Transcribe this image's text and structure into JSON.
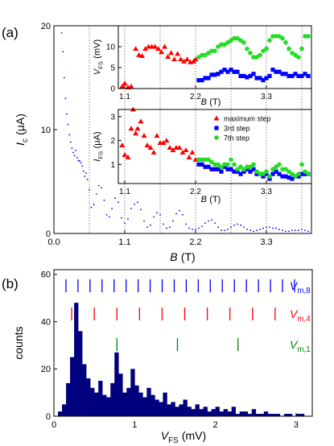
{
  "chart_data": [
    {
      "type": "scatter",
      "panel_label": "(a)",
      "x": [
        0.12,
        0.14,
        0.16,
        0.18,
        0.2,
        0.22,
        0.24,
        0.26,
        0.28,
        0.3,
        0.32,
        0.34,
        0.36,
        0.38,
        0.4,
        0.42,
        0.44,
        0.46,
        0.48,
        0.5,
        0.52,
        0.55,
        0.58,
        0.62,
        0.66,
        0.7,
        0.74,
        0.78,
        0.82,
        0.86,
        0.9,
        0.95,
        1,
        1.05,
        1.1,
        1.15,
        1.2,
        1.25,
        1.3,
        1.35,
        1.4,
        1.45,
        1.5,
        1.55,
        1.6,
        1.65,
        1.7,
        1.75,
        1.8,
        1.85,
        1.9,
        1.95,
        2,
        2.05,
        2.1,
        2.15,
        2.2,
        2.25,
        2.3,
        2.35,
        2.4,
        2.45,
        2.5,
        2.55,
        2.6,
        2.65,
        2.7,
        2.75,
        2.8,
        2.85,
        2.9,
        2.95,
        3,
        3.05,
        3.1,
        3.15,
        3.2,
        3.25,
        3.3,
        3.35,
        3.4,
        3.45,
        3.5,
        3.55,
        3.6,
        3.65,
        3.7,
        3.75,
        3.8,
        3.85,
        3.9,
        3.95
      ],
      "values": [
        19.3,
        17.5,
        15,
        13,
        11.5,
        10.5,
        9.5,
        8.8,
        8.2,
        7.8,
        7.5,
        8,
        7.3,
        7,
        7,
        6.8,
        6.5,
        6,
        5.5,
        5.8,
        5.2,
        4.2,
        2.5,
        2.8,
        3.8,
        4.6,
        4.4,
        3.2,
        1.8,
        1.6,
        2.4,
        3.4,
        3,
        1.5,
        1,
        1.4,
        2.4,
        2.8,
        3,
        2.3,
        1.2,
        0.6,
        0.8,
        1.6,
        2,
        1.8,
        0.9,
        0.5,
        0.6,
        1.2,
        1.9,
        2.2,
        1.8,
        0.9,
        0.5,
        0.4,
        0.4,
        0.5,
        0.7,
        1,
        1.2,
        1.3,
        1,
        0.6,
        0.3,
        0.3,
        0.4,
        0.6,
        0.8,
        0.9,
        0.8,
        0.6,
        0.4,
        0.3,
        0.2,
        0.3,
        0.4,
        0.5,
        0.6,
        0.6,
        0.5,
        0.5,
        0.4,
        0.3,
        0.2,
        0.2,
        0.3,
        0.3,
        0.3,
        0.4,
        0.3,
        0.2
      ],
      "color": "#0000ff",
      "marker": "dot",
      "xlim": [
        0,
        4
      ],
      "ylim": [
        0,
        20
      ],
      "xticks": [
        {
          "value": 0,
          "label": "0.0"
        },
        1.1,
        2.2,
        3.3
      ],
      "yticks": [
        0,
        10,
        20
      ],
      "xlabel": {
        "symbol": "B",
        "unit": "(T)"
      },
      "ylabel": {
        "symbol": "I",
        "sub": "c",
        "unit": "(μA)"
      },
      "vlines": [
        0.55,
        1.1,
        1.65,
        2.2,
        2.75,
        3.3,
        3.85
      ]
    },
    {
      "type": "scatter",
      "series": [
        {
          "color": "#ff0000",
          "marker": "triangle",
          "x": [
            1.06,
            1.1,
            1.15,
            1.2,
            1.27,
            1.32,
            1.37,
            1.42,
            1.47,
            1.52,
            1.57,
            1.62,
            1.67,
            1.72,
            1.77,
            1.82,
            1.87,
            1.92,
            1.97,
            2.02,
            2.07,
            2.12,
            2.17,
            2.2
          ],
          "values": [
            0.5,
            1.2,
            0.3,
            0.5,
            9.5,
            8,
            7.8,
            9.5,
            10,
            10,
            10,
            9.5,
            8.7,
            10,
            7.6,
            8.5,
            7,
            8.3,
            7,
            6.5,
            7,
            6.3,
            6.5,
            7
          ]
        },
        {
          "color": "#0000ff",
          "marker": "square",
          "x": [
            2.25,
            2.3,
            2.35,
            2.4,
            2.45,
            2.5,
            2.55,
            2.6,
            2.65,
            2.7,
            2.75,
            2.8,
            2.85,
            2.9,
            2.95,
            3,
            3.05,
            3.1,
            3.15,
            3.2,
            3.25,
            3.3,
            3.35,
            3.4,
            3.45,
            3.5,
            3.55,
            3.6,
            3.65,
            3.7,
            3.75,
            3.8,
            3.85,
            3.9,
            3.95
          ],
          "values": [
            2,
            2,
            2.5,
            2.5,
            3.3,
            3.3,
            3.5,
            4,
            4.5,
            4,
            4.5,
            4,
            4,
            3,
            3,
            2.7,
            3,
            3.5,
            2.5,
            2.5,
            2,
            2.5,
            3,
            4.5,
            4,
            4,
            3.5,
            3.5,
            3,
            3,
            3.5,
            3,
            3,
            3.5,
            3
          ]
        },
        {
          "color": "#22dd22",
          "marker": "circle",
          "x": [
            2.25,
            2.3,
            2.35,
            2.4,
            2.45,
            2.5,
            2.55,
            2.6,
            2.65,
            2.7,
            2.75,
            2.8,
            2.85,
            2.9,
            2.95,
            3,
            3.05,
            3.1,
            3.15,
            3.2,
            3.25,
            3.3,
            3.35,
            3.4,
            3.45,
            3.5,
            3.55,
            3.6,
            3.65,
            3.7,
            3.75,
            3.8,
            3.85,
            3.9,
            3.95
          ],
          "values": [
            7.5,
            8,
            8,
            8.5,
            9,
            9,
            10,
            10.5,
            10.5,
            11,
            11.5,
            12,
            12,
            11.5,
            11,
            9.5,
            8.5,
            7.5,
            7.5,
            8,
            9,
            9.5,
            11.5,
            12.5,
            12.5,
            12.5,
            12,
            11,
            9.5,
            8.5,
            8,
            7.5,
            9.5,
            12.5,
            12.5
          ]
        }
      ],
      "xlim": [
        1,
        4
      ],
      "ylim": [
        0,
        15
      ],
      "xticks": [
        1.1,
        2.2,
        3.3
      ],
      "yticks": [
        0,
        5,
        10
      ],
      "xlabel": {
        "symbol": "B",
        "unit": "(T)"
      },
      "ylabel": {
        "symbol": "V",
        "sub": "FS",
        "unit": "(mV)"
      },
      "vlines": [
        1.1,
        1.65,
        2.2,
        2.75,
        3.3,
        3.85
      ]
    },
    {
      "type": "scatter",
      "legend": "upper right",
      "series": [
        {
          "name": "maximum step",
          "color": "#ff0000",
          "marker": "triangle",
          "x": [
            1.06,
            1.1,
            1.15,
            1.2,
            1.23,
            1.27,
            1.3,
            1.35,
            1.4,
            1.45,
            1.5,
            1.55,
            1.6,
            1.65,
            1.7,
            1.75,
            1.8,
            1.85,
            1.9,
            1.95,
            2,
            2.05,
            2.1,
            2.15,
            2.2
          ],
          "values": [
            1.8,
            1.4,
            1.3,
            2.5,
            3.3,
            2.3,
            2.5,
            2.8,
            2.2,
            1.8,
            1.7,
            1.5,
            2.2,
            1.9,
            1.9,
            2,
            1.7,
            1.6,
            1.7,
            1.7,
            1.5,
            1.6,
            1.3,
            1.5,
            1.2
          ]
        },
        {
          "name": "3rd step",
          "color": "#0000ff",
          "marker": "square",
          "x": [
            2.25,
            2.3,
            2.35,
            2.4,
            2.45,
            2.5,
            2.55,
            2.6,
            2.65,
            2.7,
            2.75,
            2.8,
            2.85,
            2.9,
            2.95,
            3,
            3.05,
            3.1,
            3.15,
            3.2,
            3.25,
            3.3,
            3.35,
            3.4,
            3.45,
            3.5,
            3.55,
            3.6,
            3.65,
            3.7,
            3.75,
            3.8,
            3.85,
            3.9,
            3.95
          ],
          "values": [
            1,
            1,
            0.9,
            0.9,
            0.8,
            0.8,
            0.8,
            0.7,
            0.9,
            0.8,
            0.8,
            0.7,
            0.7,
            0.6,
            0.7,
            0.8,
            0.7,
            0.8,
            0.6,
            0.6,
            0.5,
            0.6,
            0.4,
            0.6,
            0.7,
            0.6,
            0.5,
            0.5,
            0.45,
            0.4,
            0.5,
            0.5,
            0.6,
            0.6,
            0.6
          ]
        },
        {
          "name": "7th step",
          "color": "#22dd22",
          "marker": "circle",
          "x": [
            2.25,
            2.3,
            2.35,
            2.4,
            2.45,
            2.5,
            2.55,
            2.6,
            2.65,
            2.7,
            2.75,
            2.8,
            2.85,
            2.9,
            2.95,
            3,
            3.05,
            3.1,
            3.15,
            3.2,
            3.25,
            3.3,
            3.35,
            3.4,
            3.45,
            3.5,
            3.55,
            3.6,
            3.65,
            3.7,
            3.75,
            3.8,
            3.85,
            3.9,
            3.95
          ],
          "values": [
            1.2,
            1.2,
            1.2,
            1.2,
            1.1,
            1,
            1,
            0.9,
            1,
            1,
            1.2,
            1,
            0.8,
            0.9,
            0.8,
            0.9,
            0.9,
            1,
            0.7,
            0.6,
            0.6,
            0.7,
            0.5,
            0.8,
            0.9,
            1,
            0.8,
            0.8,
            0.7,
            0.6,
            0.5,
            0.6,
            1,
            0.7,
            0.6
          ]
        }
      ],
      "xlim": [
        1,
        4
      ],
      "ylim": [
        0.2,
        3.3
      ],
      "xticks": [
        1.1,
        2.2,
        3.3
      ],
      "yticks": [
        1,
        2,
        3
      ],
      "xlabel": {
        "symbol": "B",
        "unit": "(T)"
      },
      "ylabel": {
        "symbol": "I",
        "sub": "FS",
        "unit": "(μA)"
      },
      "vlines": [
        1.1,
        1.65,
        2.2,
        2.75,
        3.3,
        3.85
      ]
    },
    {
      "type": "histogram",
      "panel_label": "(b)",
      "color": "#00007f",
      "bins": [
        0.05,
        0.1,
        0.15,
        0.2,
        0.25,
        0.3,
        0.35,
        0.4,
        0.45,
        0.5,
        0.55,
        0.6,
        0.65,
        0.7,
        0.75,
        0.8,
        0.85,
        0.9,
        0.95,
        1,
        1.05,
        1.1,
        1.15,
        1.2,
        1.25,
        1.3,
        1.35,
        1.4,
        1.45,
        1.5,
        1.55,
        1.6,
        1.65,
        1.7,
        1.75,
        1.8,
        1.85,
        1.9,
        1.95,
        2,
        2.05,
        2.1,
        2.15,
        2.2,
        2.25,
        2.3,
        2.35,
        2.4,
        2.45,
        2.5,
        2.55,
        2.6,
        2.65,
        2.7,
        2.75,
        2.8,
        2.85,
        2.9,
        2.95,
        3,
        3.05,
        3.1
      ],
      "values": [
        2,
        5,
        14,
        25,
        48,
        36,
        22,
        16,
        12,
        10,
        15,
        9,
        8,
        14,
        27,
        18,
        10,
        12,
        20,
        13,
        10,
        8,
        12,
        9,
        7,
        6,
        10,
        5,
        6,
        4,
        5,
        7,
        4,
        3,
        5,
        3,
        4,
        2,
        3,
        4,
        2,
        3,
        2,
        4,
        1,
        2,
        2,
        1,
        3,
        1,
        1,
        2,
        1,
        1,
        1,
        0,
        1,
        1,
        0,
        1,
        1
      ],
      "xlim": [
        0,
        3.2
      ],
      "ylim": [
        0,
        62
      ],
      "xticks": [
        0,
        1,
        2,
        3
      ],
      "yticks": [
        0,
        20,
        40,
        60
      ],
      "xlabel": {
        "symbol": "V",
        "sub": "FS",
        "unit": "(mV)"
      },
      "ylabel": {
        "unit": "counts"
      },
      "markers": [
        {
          "label": {
            "symbol": "V",
            "sub": "m,8"
          },
          "color": "#0000ff",
          "x": [
            0.149,
            0.298,
            0.447,
            0.596,
            0.745,
            0.894,
            1.043,
            1.192,
            1.341,
            1.49,
            1.639,
            1.788,
            1.937,
            2.086,
            2.235,
            2.384,
            2.533,
            2.682,
            2.831,
            2.98
          ]
        },
        {
          "label": {
            "symbol": "V",
            "sub": "m,4"
          },
          "color": "#ff0000",
          "x": [
            0.22,
            0.5,
            0.78,
            1.06,
            1.34,
            1.62,
            1.9,
            2.18,
            2.46,
            2.74
          ]
        },
        {
          "label": {
            "symbol": "V",
            "sub": "m,1"
          },
          "color": "#008000",
          "x": [
            0.78,
            1.53,
            2.28
          ]
        }
      ]
    }
  ]
}
